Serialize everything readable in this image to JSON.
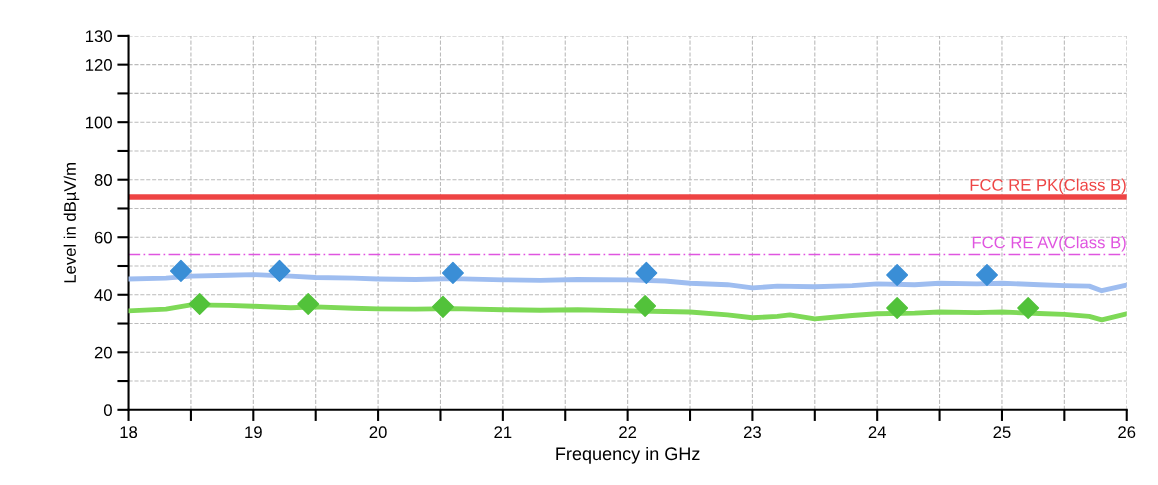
{
  "chart_data": {
    "type": "line",
    "xlabel": "Frequency in GHz",
    "ylabel": "Level in dBµV/m",
    "xlim": [
      18,
      26
    ],
    "xticks": [
      18,
      {
        "value": 18.5,
        "label": null
      },
      19,
      {
        "value": 19.5,
        "label": null
      },
      20,
      {
        "value": 20.5,
        "label": null
      },
      21,
      {
        "value": 21.5,
        "label": null
      },
      22,
      {
        "value": 22.5,
        "label": null
      },
      23,
      {
        "value": 23.5,
        "label": null
      },
      24,
      {
        "value": 24.5,
        "label": null
      },
      25,
      {
        "value": 25.5,
        "label": null
      },
      26
    ],
    "ylim": [
      0,
      130
    ],
    "yticks": [
      0,
      {
        "value": 10,
        "label": null
      },
      20,
      {
        "value": 30,
        "label": null
      },
      40,
      {
        "value": 50,
        "label": null
      },
      60,
      {
        "value": 70,
        "label": null
      },
      80,
      {
        "value": 90,
        "label": null
      },
      100,
      {
        "value": 110,
        "label": null
      },
      120,
      130
    ],
    "grid": true,
    "legend": false,
    "series": [
      {
        "color": "#9ebdf0",
        "x": [
          18,
          18.3,
          18.5,
          18.8,
          19,
          19.3,
          19.5,
          19.8,
          20,
          20.3,
          20.6,
          21,
          21.3,
          21.6,
          22,
          22.3,
          22.5,
          22.8,
          23,
          23.2,
          23.5,
          23.8,
          24,
          24.3,
          24.5,
          24.8,
          25,
          25.3,
          25.5,
          25.7,
          25.8,
          26
        ],
        "values": [
          45.5,
          45.8,
          46.5,
          46.8,
          47,
          46.5,
          46,
          45.8,
          45.5,
          45.3,
          45.6,
          45.2,
          45,
          45.3,
          45.2,
          44.8,
          44,
          43.5,
          42.4,
          43,
          42.8,
          43.2,
          43.8,
          43.5,
          44,
          43.8,
          44,
          43.5,
          43.2,
          43,
          41.4,
          43.4
        ]
      },
      {
        "color": "#7ed957",
        "x": [
          18,
          18.3,
          18.5,
          18.8,
          19,
          19.3,
          19.5,
          19.8,
          20,
          20.3,
          20.6,
          21,
          21.3,
          21.6,
          22,
          22.3,
          22.5,
          22.8,
          23,
          23.2,
          23.3,
          23.5,
          23.8,
          24,
          24.3,
          24.5,
          24.8,
          25,
          25.3,
          25.5,
          25.7,
          25.8,
          26
        ],
        "values": [
          34.4,
          35,
          36.5,
          36.3,
          36,
          35.5,
          35.8,
          35.3,
          35.1,
          35,
          35.2,
          34.8,
          34.6,
          34.8,
          34.4,
          34.2,
          34,
          33,
          32,
          32.5,
          33,
          31.6,
          32.8,
          33.4,
          33.6,
          34,
          33.8,
          34,
          33.5,
          33.2,
          32.5,
          31.3,
          33.4
        ]
      },
      {
        "type": "scatter",
        "color": "#3a8ed6",
        "marker": "diamond",
        "x": [
          18.42,
          19.21,
          20.6,
          22.15,
          24.16,
          24.88
        ],
        "values": [
          48.3,
          48.3,
          47.6,
          47.6,
          46.9,
          46.9
        ]
      },
      {
        "type": "scatter",
        "color": "#52c23a",
        "marker": "diamond",
        "x": [
          18.57,
          19.44,
          20.52,
          22.14,
          24.16,
          25.21
        ],
        "values": [
          36.8,
          36.8,
          35.8,
          36.1,
          35.4,
          35.4
        ]
      }
    ],
    "ref_lines": [
      {
        "axis": "y",
        "value": 74,
        "label": "FCC RE PK(Class B)",
        "color": "#ee4444",
        "line_style": "solid"
      },
      {
        "axis": "y",
        "value": 54,
        "label": "FCC RE AV(Class B)",
        "color": "#e055e0",
        "line_style": "dashed"
      }
    ]
  }
}
